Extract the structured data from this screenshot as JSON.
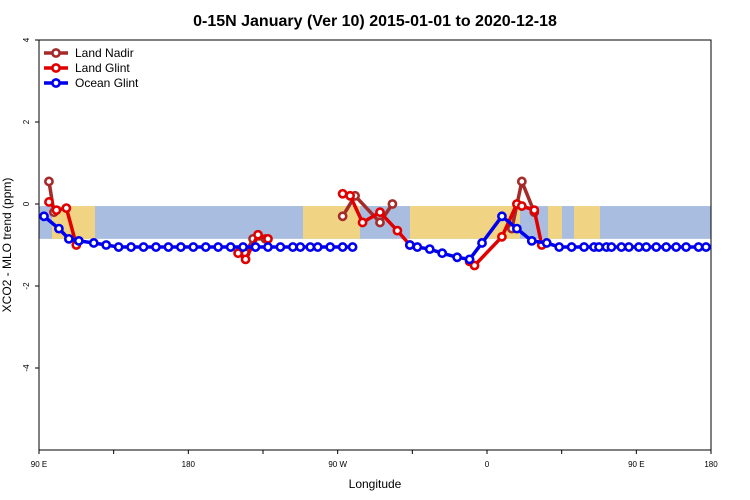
{
  "chart_data": {
    "type": "line",
    "title": "0-15N January (Ver 10)   2015-01-01 to 2020-12-18",
    "xlabel": "Longitude",
    "ylabel": "XCO2 - MLO trend (ppm)",
    "xlim": [
      -270,
      0
    ],
    "ylim": [
      -6,
      4
    ],
    "x_ticks": [
      -270,
      -240,
      -210,
      -180,
      -150,
      -120,
      -90,
      -60,
      -30,
      0
    ],
    "x_tick_labels": [
      "90 E",
      "",
      "180",
      "",
      "90 W",
      "",
      "0",
      "",
      "90 E",
      "180"
    ],
    "y_ticks": [
      -4,
      -2,
      0,
      2,
      4
    ],
    "y_tick_labels": [
      "-4",
      "-2",
      "0",
      "2",
      "4"
    ],
    "band": {
      "y_min": -0.85,
      "y_max": -0.05,
      "band_color": "#a8bddf",
      "land_color": "#f7d67a"
    },
    "grid": false,
    "legend": {
      "position": "top-left"
    },
    "series": [
      {
        "name": "Land Nadir",
        "color": "#a52a2a",
        "segments": [
          {
            "x": [
              -266,
              -264
            ],
            "y": [
              0.55,
              -0.2
            ]
          },
          {
            "x": [
              -187,
              -184,
              -179
            ],
            "y": [
              -1.2,
              -0.85,
              -0.85
            ]
          },
          {
            "x": [
              -148,
              -143,
              -133,
              -128
            ],
            "y": [
              -0.3,
              0.2,
              -0.45,
              0.0
            ]
          },
          {
            "x": [
              -80,
              -76,
              -71
            ],
            "y": [
              -0.6,
              0.55,
              -0.2
            ]
          }
        ]
      },
      {
        "name": "Land Glint",
        "color": "#e00000",
        "segments": [
          {
            "x": [
              -266,
              -263,
              -259,
              -255
            ],
            "y": [
              0.05,
              -0.15,
              -0.1,
              -1.0
            ]
          },
          {
            "x": [
              -190,
              -187,
              -182,
              -178
            ],
            "y": [
              -1.2,
              -1.35,
              -0.75,
              -0.85
            ]
          },
          {
            "x": [
              -148,
              -145,
              -140,
              -133,
              -126,
              -121
            ],
            "y": [
              0.25,
              0.2,
              -0.45,
              -0.2,
              -0.65,
              -1.0
            ]
          },
          {
            "x": [
              -97,
              -95,
              -84,
              -78,
              -76,
              -71,
              -68
            ],
            "y": [
              -1.4,
              -1.5,
              -0.8,
              0.0,
              -0.05,
              -0.15,
              -1.0
            ]
          }
        ]
      },
      {
        "name": "Ocean Glint",
        "color": "#0000ee",
        "segments": [
          {
            "x": [
              -268,
              -262,
              -258,
              -254,
              -248,
              -243,
              -238,
              -233,
              -228,
              -223,
              -218,
              -213,
              -208,
              -203,
              -198,
              -193,
              -188,
              -183,
              -178,
              -173,
              -168,
              -165,
              -161,
              -158,
              -153,
              -148,
              -144
            ],
            "y": [
              -0.3,
              -0.6,
              -0.85,
              -0.9,
              -0.95,
              -1.0,
              -1.05,
              -1.05,
              -1.05,
              -1.05,
              -1.05,
              -1.05,
              -1.05,
              -1.05,
              -1.05,
              -1.05,
              -1.05,
              -1.05,
              -1.05,
              -1.05,
              -1.05,
              -1.05,
              -1.05,
              -1.05,
              -1.05,
              -1.05,
              -1.05
            ]
          },
          {
            "x": [
              -121,
              -118,
              -113,
              -108,
              -102,
              -97,
              -92,
              -84,
              -78,
              -72,
              -66,
              -61,
              -56,
              -51,
              -47,
              -45,
              -42,
              -40,
              -36,
              -33,
              -29,
              -26,
              -22,
              -18,
              -14,
              -10,
              -5,
              -2
            ],
            "y": [
              -1.0,
              -1.05,
              -1.1,
              -1.2,
              -1.3,
              -1.35,
              -0.95,
              -0.3,
              -0.6,
              -0.9,
              -0.95,
              -1.05,
              -1.05,
              -1.05,
              -1.05,
              -1.05,
              -1.05,
              -1.05,
              -1.05,
              -1.05,
              -1.05,
              -1.05,
              -1.05,
              -1.05,
              -1.05,
              -1.05,
              -1.05,
              -1.05
            ]
          }
        ]
      }
    ]
  }
}
